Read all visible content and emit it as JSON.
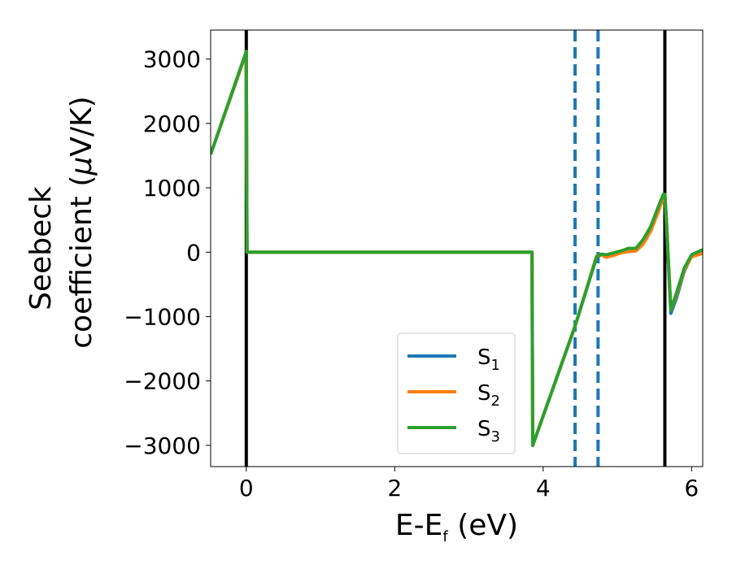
{
  "chart_data": {
    "type": "line",
    "xlabel": "E-E",
    "xlabel_sub": "f",
    "xlabel_unit": " (eV)",
    "ylabel_line1": "Seebeck",
    "ylabel_line2_pre": "coefficient  (",
    "ylabel_line2_mu": "μ",
    "ylabel_line2_post": "V/K)",
    "xlim": [
      -0.48,
      6.15
    ],
    "ylim": [
      -3330,
      3450
    ],
    "xticks": [
      0,
      2,
      4,
      6
    ],
    "xtick_labels": [
      "0",
      "2",
      "4",
      "6"
    ],
    "yticks": [
      -3000,
      -2000,
      -1000,
      0,
      1000,
      2000,
      3000
    ],
    "ytick_labels": [
      "−3000",
      "−2000",
      "−1000",
      "0",
      "1000",
      "2000",
      "3000"
    ],
    "vertical_lines": [
      {
        "x": 0.0,
        "style": "solid",
        "color": "#000000"
      },
      {
        "x": 5.64,
        "style": "solid",
        "color": "#000000"
      },
      {
        "x": 4.43,
        "style": "dashed",
        "color": "#1f77b4"
      },
      {
        "x": 4.74,
        "style": "dashed",
        "color": "#1f77b4"
      }
    ],
    "legend_position": "lower-right",
    "series": [
      {
        "name": "S",
        "sub": "1",
        "color": "#1f77b4",
        "x": [
          -0.48,
          0.0,
          0.01,
          3.85,
          3.86,
          4.43,
          4.72,
          4.78,
          4.85,
          4.95,
          5.05,
          5.15,
          5.25,
          5.35,
          5.45,
          5.55,
          5.62,
          5.64,
          5.66,
          5.72,
          5.8,
          5.9,
          6.0,
          6.15
        ],
        "y": [
          1520,
          3100,
          0,
          0,
          -3000,
          -1150,
          -80,
          -40,
          -50,
          -30,
          10,
          30,
          50,
          150,
          350,
          650,
          880,
          880,
          500,
          -950,
          -700,
          -300,
          -60,
          10
        ]
      },
      {
        "name": "S",
        "sub": "2",
        "color": "#ff7f0e",
        "x": [
          -0.48,
          0.0,
          0.01,
          3.85,
          3.86,
          4.43,
          4.72,
          4.78,
          4.85,
          4.95,
          5.05,
          5.15,
          5.25,
          5.35,
          5.45,
          5.55,
          5.62,
          5.64,
          5.66,
          5.72,
          5.8,
          5.9,
          6.0,
          6.15
        ],
        "y": [
          1520,
          3100,
          0,
          0,
          -3000,
          -1150,
          -60,
          -40,
          -80,
          -50,
          -10,
          10,
          20,
          130,
          330,
          620,
          860,
          860,
          480,
          -900,
          -650,
          -280,
          -70,
          -20
        ]
      },
      {
        "name": "S",
        "sub": "3",
        "color": "#2ca02c",
        "x": [
          -0.48,
          0.0,
          0.01,
          3.85,
          3.86,
          4.43,
          4.72,
          4.78,
          4.85,
          4.95,
          5.05,
          5.15,
          5.25,
          5.35,
          5.45,
          5.55,
          5.62,
          5.64,
          5.66,
          5.72,
          5.8,
          5.9,
          6.0,
          6.15
        ],
        "y": [
          1520,
          3120,
          0,
          0,
          -3000,
          -1150,
          -70,
          -30,
          -40,
          -10,
          20,
          60,
          60,
          200,
          400,
          700,
          900,
          900,
          520,
          -900,
          -620,
          -250,
          -40,
          40
        ]
      }
    ]
  }
}
